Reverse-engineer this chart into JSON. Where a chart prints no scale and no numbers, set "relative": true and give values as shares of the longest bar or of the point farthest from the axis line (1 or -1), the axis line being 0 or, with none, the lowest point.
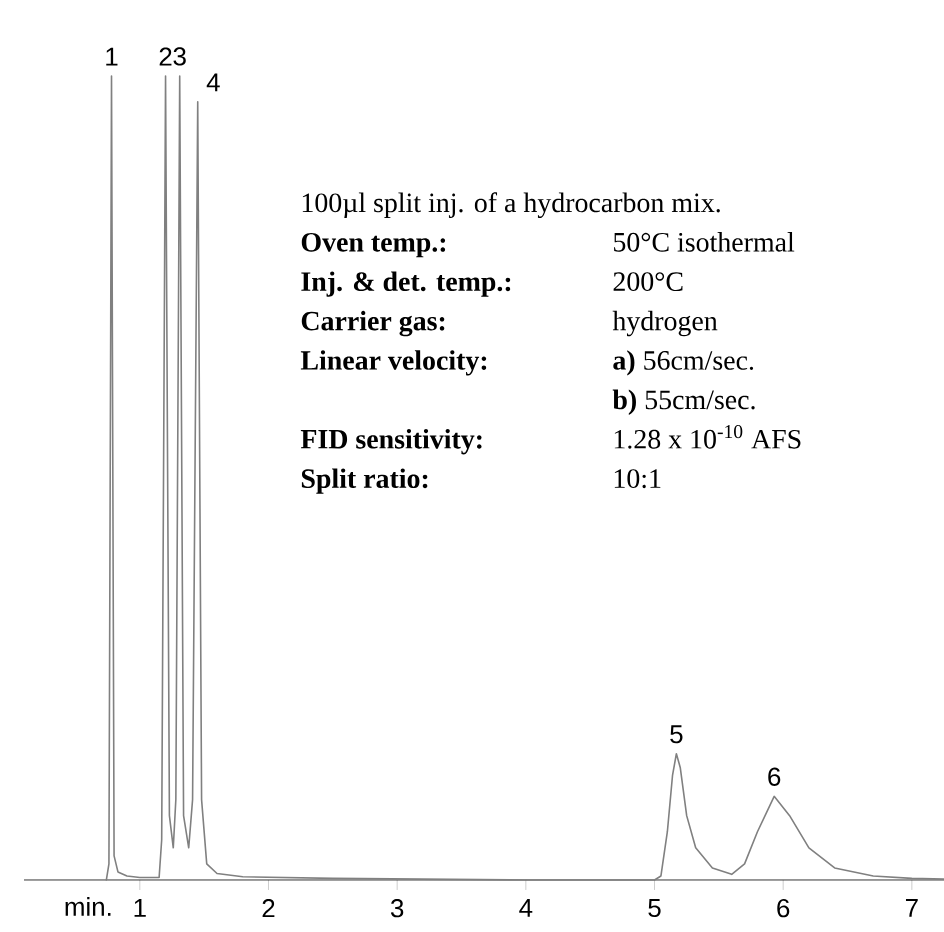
{
  "chart_data": {
    "type": "line",
    "relative": true,
    "xlabel": "min.",
    "xlim": [
      0.1,
      7.25
    ],
    "xticks": [
      1,
      2,
      3,
      4,
      5,
      6,
      7
    ],
    "grid": false,
    "marker": "none",
    "line_style": "solid",
    "series": [
      {
        "color": "#808080",
        "x": [
          0.74,
          0.76,
          0.78,
          0.8,
          0.83,
          0.9,
          1.0,
          1.15,
          1.17,
          1.2,
          1.23,
          1.26,
          1.28,
          1.31,
          1.34,
          1.38,
          1.41,
          1.45,
          1.48,
          1.52,
          1.6,
          1.8,
          2.5,
          4.0,
          5.0,
          5.05,
          5.1,
          5.14,
          5.17,
          5.2,
          5.25,
          5.32,
          5.45,
          5.6,
          5.7,
          5.8,
          5.93,
          6.05,
          6.2,
          6.4,
          6.7,
          7.0,
          7.25
        ],
        "values": [
          0,
          0.02,
          1,
          0.03,
          0.01,
          0.005,
          0.003,
          0.003,
          0.05,
          1,
          0.08,
          0.04,
          0.1,
          1,
          0.08,
          0.04,
          0.1,
          0.968,
          0.1,
          0.02,
          0.008,
          0.004,
          0.002,
          0,
          0,
          0.005,
          0.06,
          0.13,
          0.157,
          0.14,
          0.08,
          0.04,
          0.015,
          0.007,
          0.02,
          0.06,
          0.104,
          0.08,
          0.04,
          0.015,
          0.005,
          0.002,
          0.001
        ]
      }
    ],
    "annotations": [
      {
        "text": "1",
        "x": 0.78,
        "y": 1
      },
      {
        "text": "2",
        "x": 1.2,
        "y": 1
      },
      {
        "text": "3",
        "x": 1.31,
        "y": 1
      },
      {
        "text": "4",
        "x": 1.45,
        "y": 0.968
      },
      {
        "text": "5",
        "x": 5.17,
        "y": 0.157
      },
      {
        "text": "6",
        "x": 5.93,
        "y": 0.104
      },
      "100µl split inj. of a hydrocarbon mix.",
      "Oven temp.:",
      "50°C isothermal",
      "Inj. & det. temp.:",
      "200°C",
      "Carrier gas:",
      "hydrogen",
      "Linear velocity:",
      "**a)** 56cm/sec.",
      "**b)** 55cm/sec.",
      "FID sensitivity:",
      "1.28 x 10$^{-10}$ AFS",
      "Split ratio:",
      "10:1"
    ]
  }
}
